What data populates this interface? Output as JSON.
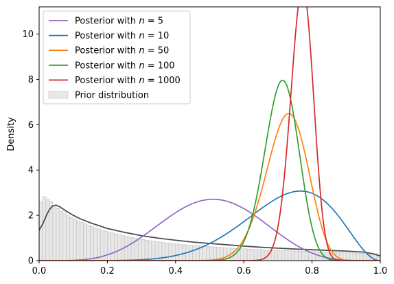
{
  "chart_data": {
    "type": "line",
    "title": "",
    "xlabel": "",
    "ylabel": "Density",
    "xlim": [
      0,
      1
    ],
    "ylim": [
      0,
      11.2
    ],
    "xticks": [
      "0.0",
      "0.2",
      "0.4",
      "0.6",
      "0.8",
      "1.0"
    ],
    "xtick_values": [
      0,
      0.2,
      0.4,
      0.6,
      0.8,
      1.0
    ],
    "yticks": [
      "0",
      "2",
      "4",
      "6",
      "8",
      "10"
    ],
    "ytick_values": [
      0,
      2,
      4,
      6,
      8,
      10
    ],
    "legend_position": "top-left",
    "grid": false,
    "series": [
      {
        "name": "Posterior with n = 5",
        "legend_prefix": "Posterior with ",
        "legend_n": "5",
        "color": "#9467bd",
        "alpha": 6.1,
        "beta": 5.9
      },
      {
        "name": "Posterior with n = 10",
        "legend_prefix": "Posterior with ",
        "legend_n": "10",
        "color": "#1f77b4",
        "alpha": 8.2,
        "beta": 3.2
      },
      {
        "name": "Posterior with n = 50",
        "legend_prefix": "Posterior with ",
        "legend_n": "50",
        "color": "#ff7f0e",
        "alpha": 38.1,
        "beta": 14.6
      },
      {
        "name": "Posterior with n = 100",
        "legend_prefix": "Posterior with ",
        "legend_n": "100",
        "color": "#2ca02c",
        "alpha": 58.1,
        "beta": 23.9
      },
      {
        "name": "Posterior with n = 1000",
        "legend_prefix": "Posterior with ",
        "legend_n": "1000",
        "color": "#d62728",
        "alpha": 124.1,
        "beta": 37.3
      }
    ],
    "prior": {
      "name": "Prior distribution",
      "kde_color": "#4d4d4d",
      "hist_color": "#e8e8e8",
      "hist_edge": "#bdbdbd",
      "kde_points": [
        [
          0.0,
          1.35
        ],
        [
          0.01,
          1.6
        ],
        [
          0.02,
          1.95
        ],
        [
          0.03,
          2.25
        ],
        [
          0.04,
          2.42
        ],
        [
          0.05,
          2.45
        ],
        [
          0.06,
          2.38
        ],
        [
          0.07,
          2.28
        ],
        [
          0.08,
          2.18
        ],
        [
          0.1,
          2.0
        ],
        [
          0.12,
          1.85
        ],
        [
          0.15,
          1.67
        ],
        [
          0.2,
          1.42
        ],
        [
          0.25,
          1.25
        ],
        [
          0.3,
          1.1
        ],
        [
          0.35,
          0.99
        ],
        [
          0.4,
          0.9
        ],
        [
          0.45,
          0.82
        ],
        [
          0.5,
          0.76
        ],
        [
          0.55,
          0.7
        ],
        [
          0.6,
          0.64
        ],
        [
          0.65,
          0.59
        ],
        [
          0.7,
          0.55
        ],
        [
          0.75,
          0.51
        ],
        [
          0.8,
          0.48
        ],
        [
          0.85,
          0.45
        ],
        [
          0.9,
          0.42
        ],
        [
          0.95,
          0.38
        ],
        [
          0.98,
          0.3
        ],
        [
          1.0,
          0.2
        ]
      ],
      "hist_bins": [
        2.6,
        2.82,
        2.7,
        2.6,
        2.45,
        2.3,
        2.18,
        2.07,
        1.98,
        1.9,
        1.83,
        1.76,
        1.69,
        1.62,
        1.56,
        1.5,
        1.45,
        1.4,
        1.35,
        1.3,
        1.26,
        1.22,
        1.18,
        1.14,
        1.1,
        1.07,
        1.04,
        1.01,
        0.98,
        0.95,
        0.93,
        0.9,
        0.88,
        0.86,
        0.84,
        0.82,
        0.8,
        0.78,
        0.76,
        0.75,
        0.73,
        0.71,
        0.7,
        0.69,
        0.67,
        0.66,
        0.65,
        0.64,
        0.63,
        0.62,
        0.61,
        0.6,
        0.59,
        0.58,
        0.57,
        0.56,
        0.55,
        0.54,
        0.53,
        0.52,
        0.52,
        0.51,
        0.5,
        0.49,
        0.49,
        0.48,
        0.47,
        0.47,
        0.46,
        0.45,
        0.45,
        0.44,
        0.44,
        0.43,
        0.43,
        0.42,
        0.42,
        0.41,
        0.41,
        0.4,
        0.4,
        0.39,
        0.39,
        0.38,
        0.38,
        0.37,
        0.37,
        0.36,
        0.36,
        0.35,
        0.35,
        0.34,
        0.34,
        0.33,
        0.33,
        0.32,
        0.32,
        0.31,
        0.3,
        0.28
      ]
    }
  }
}
